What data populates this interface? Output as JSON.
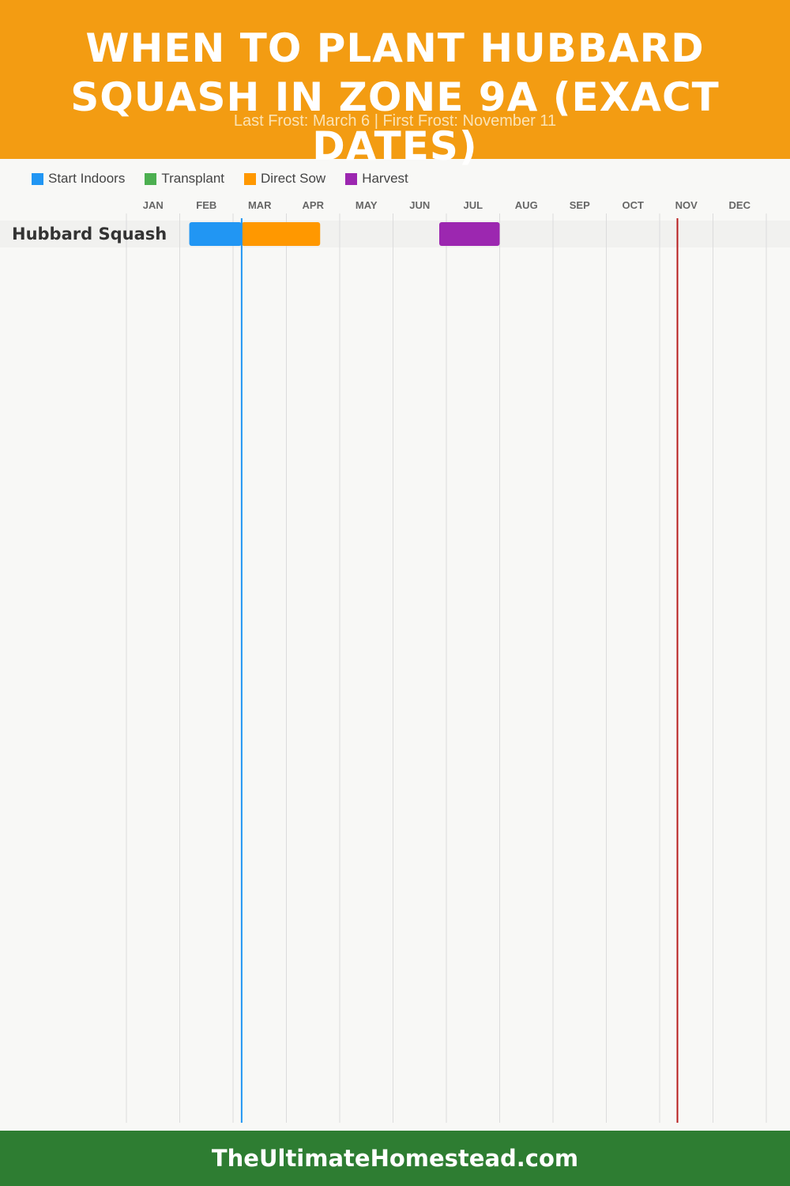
{
  "header": {
    "title": "WHEN TO PLANT HUBBARD SQUASH IN ZONE 9A (EXACT DATES)",
    "subtitle": "Last Frost: March 6 | First Frost: November 11"
  },
  "legend": [
    {
      "label": "Start Indoors",
      "color": "#2196f3"
    },
    {
      "label": "Transplant",
      "color": "#4caf50"
    },
    {
      "label": "Direct Sow",
      "color": "#ff9800"
    },
    {
      "label": "Harvest",
      "color": "#9c27b0"
    }
  ],
  "footer": {
    "site": "TheUltimateHomestead.com"
  },
  "chart_data": {
    "type": "gantt",
    "months": [
      "JAN",
      "FEB",
      "MAR",
      "APR",
      "MAY",
      "JUN",
      "JUL",
      "AUG",
      "SEP",
      "OCT",
      "NOV",
      "DEC"
    ],
    "last_frost": {
      "month": 3,
      "day": 6,
      "color": "#2196f3"
    },
    "first_frost": {
      "month": 11,
      "day": 11,
      "color": "#b71c1c"
    },
    "rows": [
      {
        "crop": "Hubbard Squash",
        "bars": [
          {
            "type": "Start Indoors",
            "start": {
              "month": 2,
              "day": 6
            },
            "end": {
              "month": 3,
              "day": 6
            },
            "color": "#2196f3"
          },
          {
            "type": "Direct Sow",
            "start": {
              "month": 3,
              "day": 6
            },
            "end": {
              "month": 4,
              "day": 20
            },
            "color": "#ff9800"
          },
          {
            "type": "Harvest",
            "start": {
              "month": 6,
              "day": 27
            },
            "end": {
              "month": 8,
              "day": 1
            },
            "color": "#9c27b0"
          }
        ]
      }
    ]
  }
}
